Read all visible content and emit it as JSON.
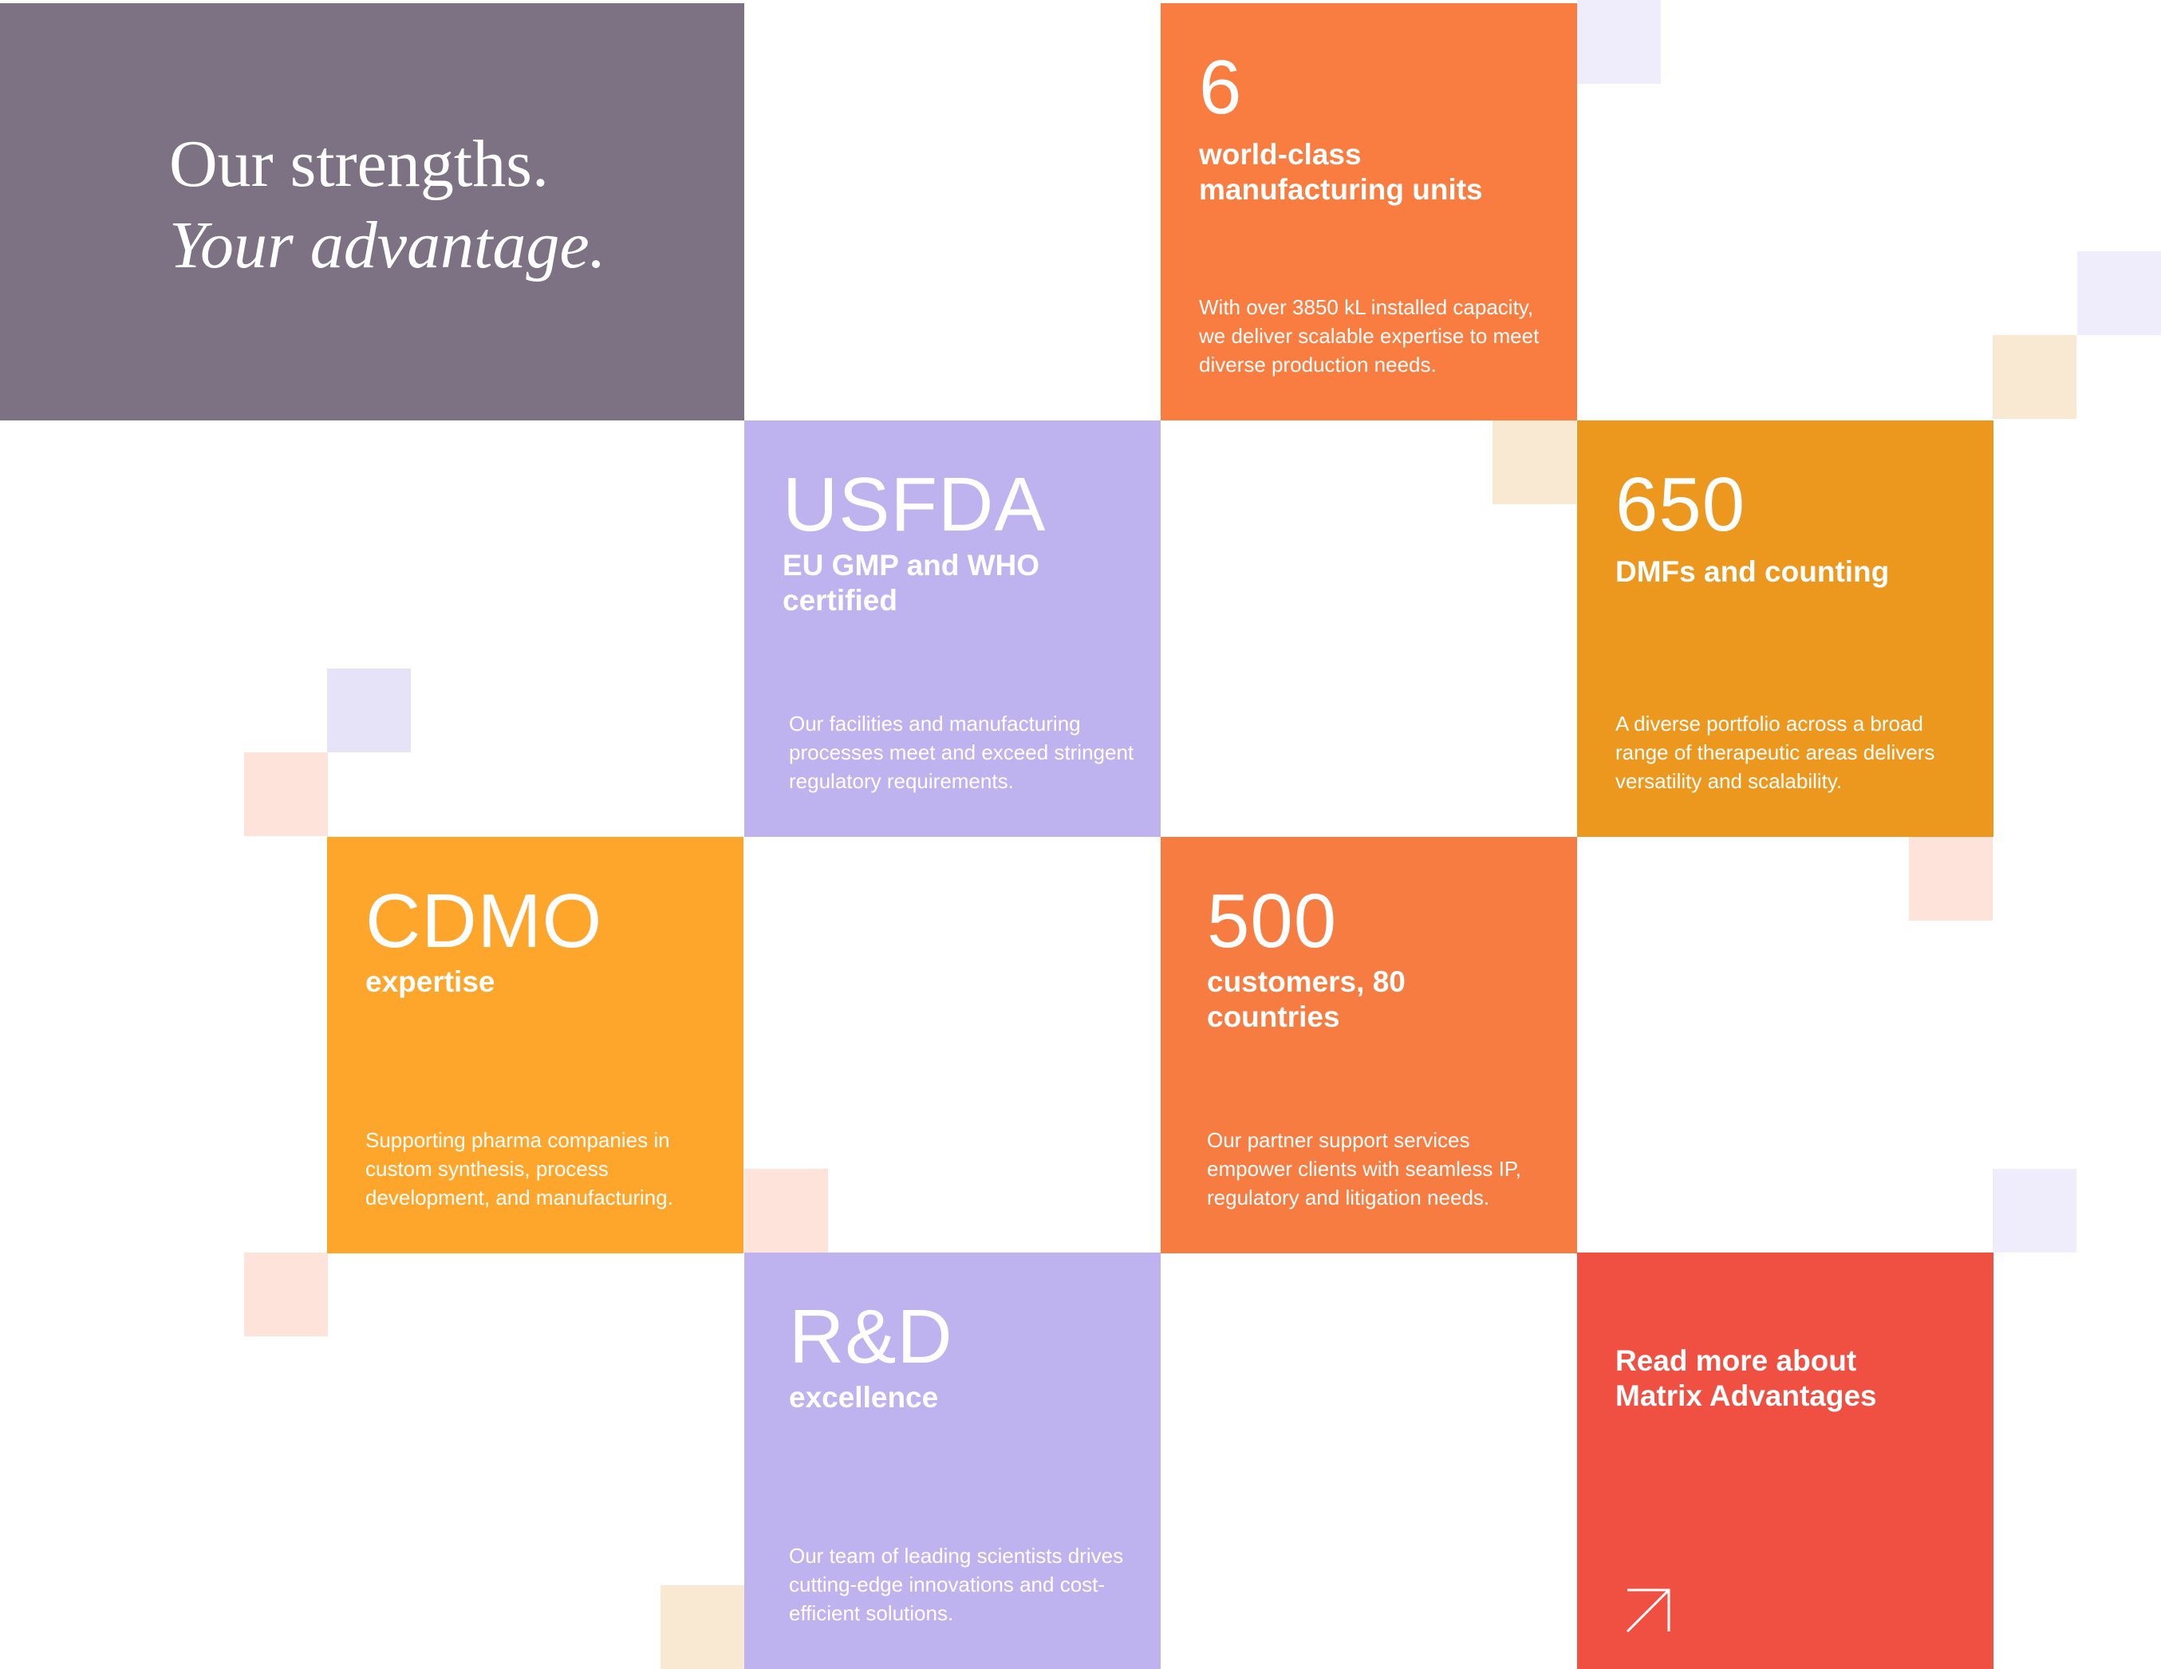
{
  "heading": {
    "line1": "Our strengths.",
    "line2": "Your advantage."
  },
  "colors": {
    "title_bg": "#7d7184",
    "orange": "#f97d40",
    "lavender": "#bfb3ef",
    "amber": "#ec981f",
    "yellow_orange": "#fea62b",
    "red": "#ef5042",
    "deco_lavender": "#efedfb",
    "deco_lavender_2": "#e6e3f8",
    "deco_peach": "#f9e8d2",
    "deco_pink": "#fde3d9"
  },
  "cards": [
    {
      "number": "6",
      "subtitle": "world-class manufacturing units",
      "body": "With over 3850 kL installed capacity, we deliver scalable expertise to meet diverse production needs."
    },
    {
      "number": "USFDA",
      "subtitle": "EU GMP and WHO certified",
      "body": "Our facilities and manufacturing processes meet and exceed stringent regulatory requirements."
    },
    {
      "number": "650",
      "subtitle": "DMFs and counting",
      "body": "A diverse portfolio across a broad range of therapeutic areas delivers versatility and scalability."
    },
    {
      "number": "CDMO",
      "subtitle": "expertise",
      "body": "Supporting pharma companies in custom synthesis, process development, and manufacturing."
    },
    {
      "number": "500",
      "subtitle": "customers, 80 countries",
      "body": "Our partner support services empower clients with seamless IP, regulatory and litigation needs."
    },
    {
      "number": "R&D",
      "subtitle": "excellence",
      "body": "Our team of leading scientists drives cutting-edge innovations and cost-efficient solutions."
    }
  ],
  "cta": {
    "label": "Read more about Matrix Advantages",
    "icon": "arrow-up-right-icon"
  }
}
